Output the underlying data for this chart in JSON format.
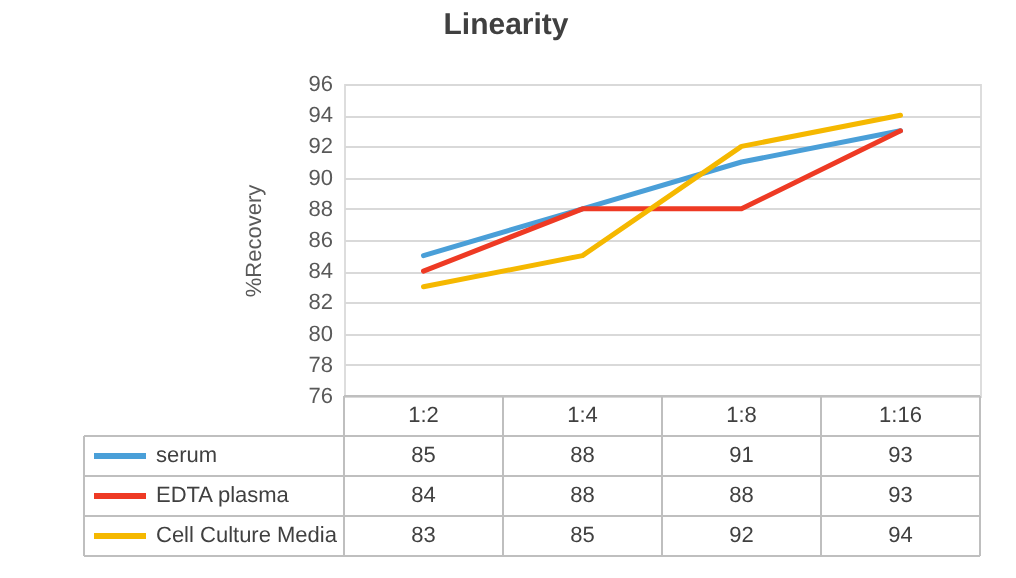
{
  "chart_data": {
    "type": "line",
    "title": "Linearity",
    "ylabel": "%Recovery",
    "categories": [
      "1:2",
      "1:4",
      "1:8",
      "1:16"
    ],
    "series": [
      {
        "name": "serum",
        "color": "#4a9fd8",
        "values": [
          85,
          88,
          91,
          93
        ]
      },
      {
        "name": "EDTA plasma",
        "color": "#ee3a24",
        "values": [
          84,
          88,
          88,
          93
        ]
      },
      {
        "name": "Cell Culture Media",
        "color": "#f5b800",
        "values": [
          83,
          85,
          92,
          94
        ]
      }
    ],
    "ylim": [
      76,
      96
    ],
    "yticks": [
      76,
      78,
      80,
      82,
      84,
      86,
      88,
      90,
      92,
      94,
      96
    ],
    "grid": "y",
    "legend": "bottom",
    "data_labels": true,
    "marker": "none",
    "line_style": "solid"
  }
}
